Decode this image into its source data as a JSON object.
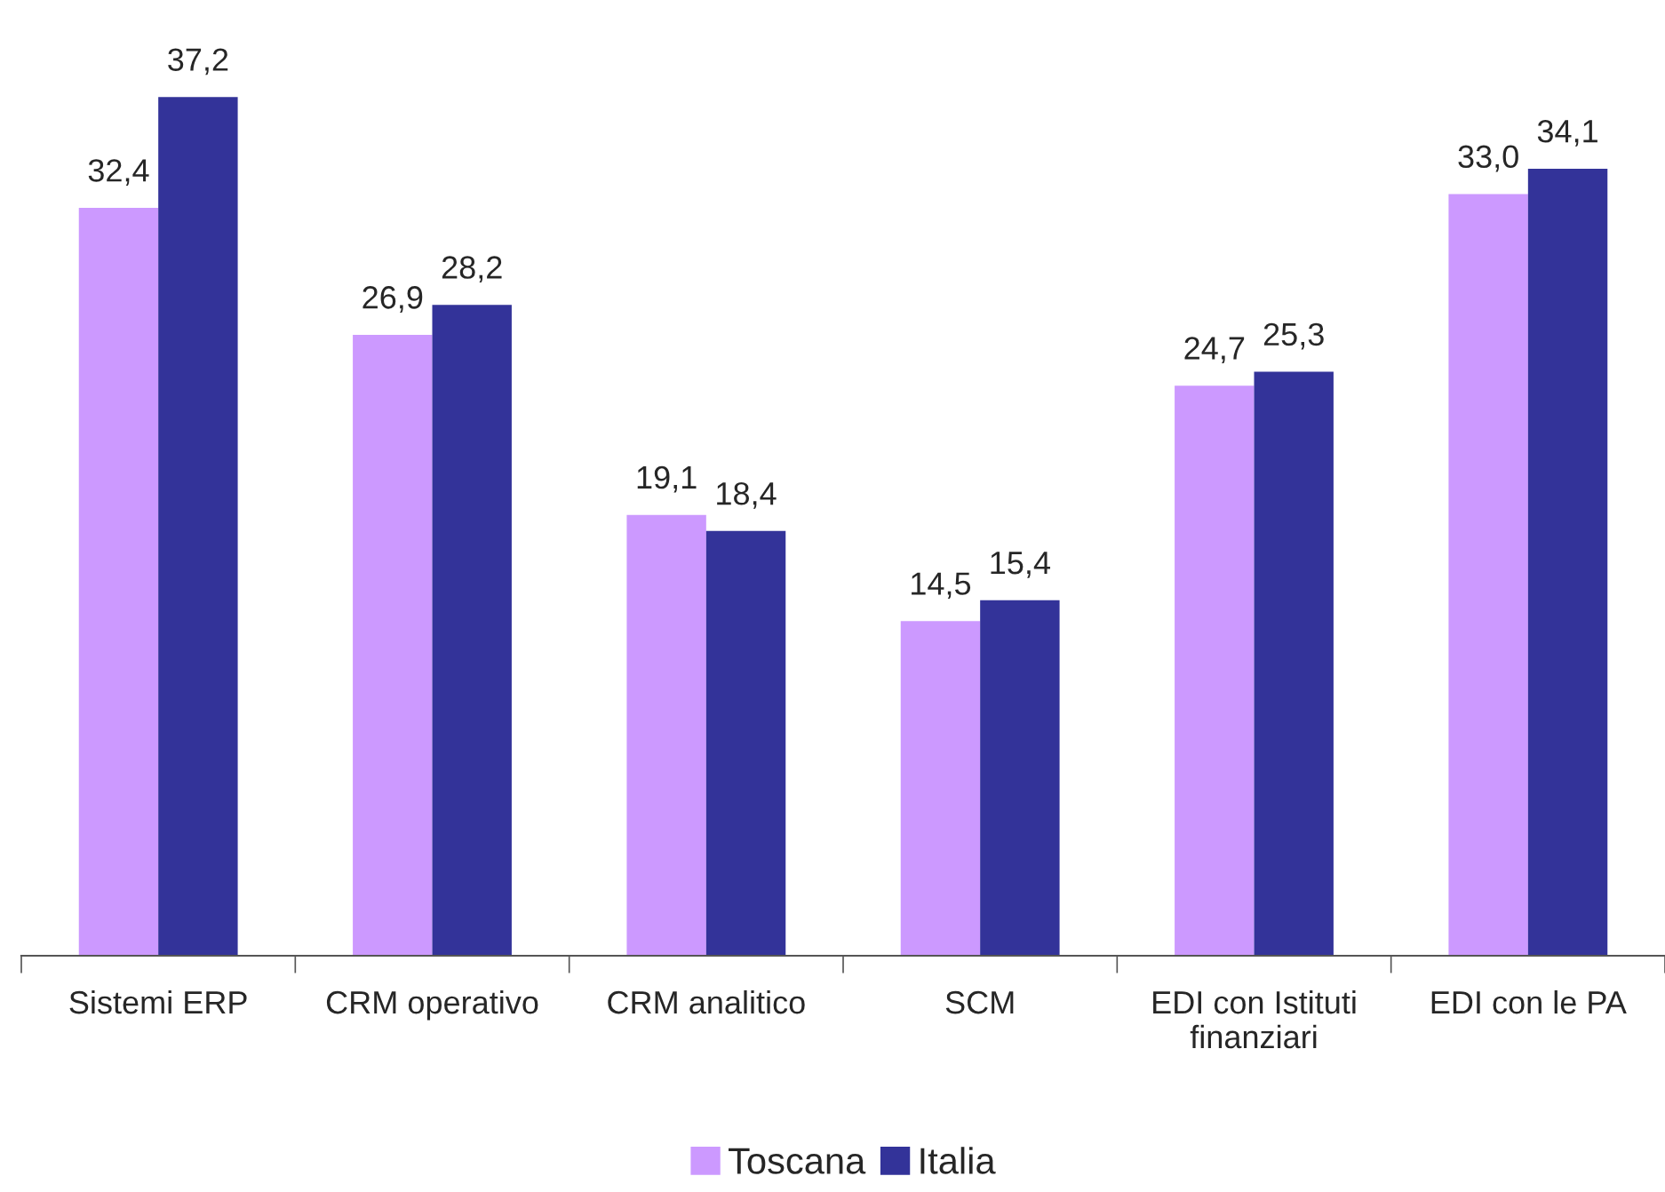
{
  "chart_data": {
    "type": "bar",
    "categories": [
      "Sistemi ERP",
      "CRM operativo",
      "CRM analitico",
      "SCM",
      "EDI con Istituti\nfinanziari",
      "EDI con le PA"
    ],
    "series": [
      {
        "name": "Toscana",
        "color": "#cc99ff",
        "values": [
          32.4,
          26.9,
          19.1,
          14.5,
          24.7,
          33.0
        ],
        "value_labels": [
          "32,4",
          "26,9",
          "19,1",
          "14,5",
          "24,7",
          "33,0"
        ]
      },
      {
        "name": "Italia",
        "color": "#333399",
        "values": [
          37.2,
          28.2,
          18.4,
          15.4,
          25.3,
          34.1
        ],
        "value_labels": [
          "37,2",
          "28,2",
          "18,4",
          "15,4",
          "25,3",
          "34,1"
        ]
      }
    ],
    "tick_labels": "x",
    "grid": false,
    "legend": "bottom"
  }
}
